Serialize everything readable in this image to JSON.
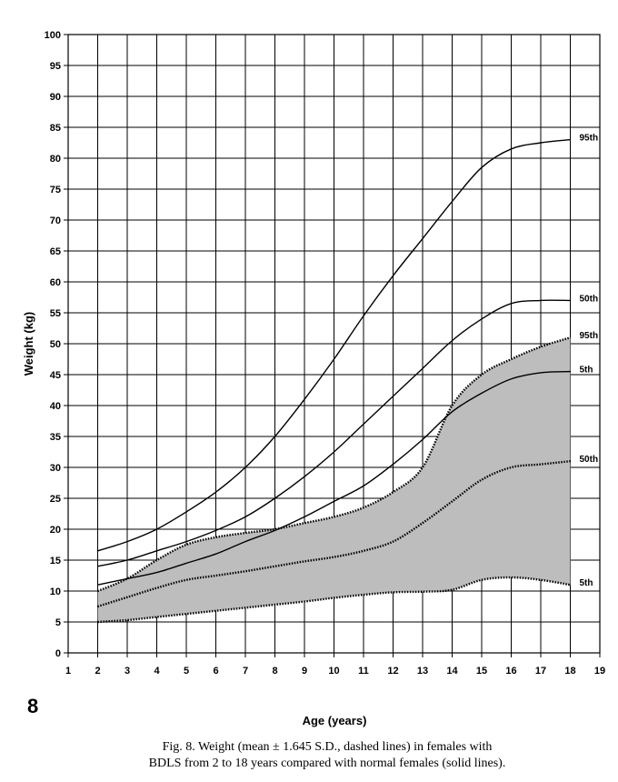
{
  "page_number": "8",
  "caption": {
    "line1": "Fig. 8.   Weight (mean ± 1.645 S.D., dashed lines) in females with",
    "line2": "BDLS from 2 to 18 years compared with normal females (solid lines)."
  },
  "chart_data": {
    "type": "line",
    "xlabel": "Age (years)",
    "ylabel": "Weight (kg)",
    "xlim": [
      1,
      19
    ],
    "ylim": [
      0,
      100
    ],
    "xticks": [
      1,
      2,
      3,
      4,
      5,
      6,
      7,
      8,
      9,
      10,
      11,
      12,
      13,
      14,
      15,
      16,
      17,
      18,
      19
    ],
    "yticks": [
      0,
      5,
      10,
      15,
      20,
      25,
      30,
      35,
      40,
      45,
      50,
      55,
      60,
      65,
      70,
      75,
      80,
      85,
      90,
      95,
      100
    ],
    "grid": true,
    "normal_series": [
      {
        "label": "95th",
        "style": "solid",
        "x": [
          2,
          3,
          4,
          5,
          6,
          7,
          8,
          9,
          10,
          11,
          12,
          13,
          14,
          15,
          16,
          17,
          18
        ],
        "y": [
          16.5,
          18,
          20,
          22.8,
          26,
          30,
          35,
          41,
          47.5,
          54.5,
          61,
          67,
          73,
          78.5,
          81.5,
          82.5,
          83
        ]
      },
      {
        "label": "50th",
        "style": "solid",
        "x": [
          2,
          3,
          4,
          5,
          6,
          7,
          8,
          9,
          10,
          11,
          12,
          13,
          14,
          15,
          16,
          17,
          18
        ],
        "y": [
          14,
          15,
          16.5,
          18,
          19.8,
          22,
          25,
          28.5,
          32.5,
          37,
          41.5,
          46,
          50.5,
          54,
          56.5,
          57,
          57
        ]
      },
      {
        "label": "5th",
        "style": "solid",
        "x": [
          2,
          3,
          4,
          5,
          6,
          7,
          8,
          9,
          10,
          11,
          12,
          13,
          14,
          15,
          16,
          17,
          18
        ],
        "y": [
          11,
          12,
          13,
          14.5,
          16,
          18,
          19.8,
          22,
          24.5,
          27,
          30.5,
          34.5,
          39,
          42,
          44.3,
          45.3,
          45.5
        ]
      }
    ],
    "bdls_series": [
      {
        "label": "95th",
        "style": "dashed",
        "x": [
          2,
          3,
          4,
          5,
          6,
          7,
          8,
          9,
          10,
          11,
          12,
          13,
          14,
          15,
          16,
          17,
          18
        ],
        "y": [
          10,
          12,
          15,
          17.5,
          18.7,
          19.4,
          20,
          21,
          22,
          23.5,
          26,
          30,
          40,
          45,
          47.5,
          49.5,
          51
        ]
      },
      {
        "label": "50th",
        "style": "dashed",
        "x": [
          2,
          3,
          4,
          5,
          6,
          7,
          8,
          9,
          10,
          11,
          12,
          13,
          14,
          15,
          16,
          17,
          18
        ],
        "y": [
          7.5,
          9,
          10.5,
          11.8,
          12.5,
          13.2,
          14,
          14.8,
          15.5,
          16.5,
          18,
          21,
          24.5,
          28,
          30,
          30.5,
          31
        ]
      },
      {
        "label": "5th",
        "style": "dashed",
        "x": [
          2,
          3,
          4,
          5,
          6,
          7,
          8,
          9,
          10,
          11,
          12,
          13,
          14,
          15,
          16,
          17,
          18
        ],
        "y": [
          5,
          5.3,
          5.8,
          6.3,
          6.8,
          7.3,
          7.8,
          8.3,
          8.9,
          9.4,
          9.8,
          9.9,
          10.2,
          11.8,
          12.2,
          11.8,
          11
        ]
      }
    ],
    "colors": {
      "line": "#000000",
      "band": "#bdbdbd",
      "grid": "#000000"
    }
  }
}
